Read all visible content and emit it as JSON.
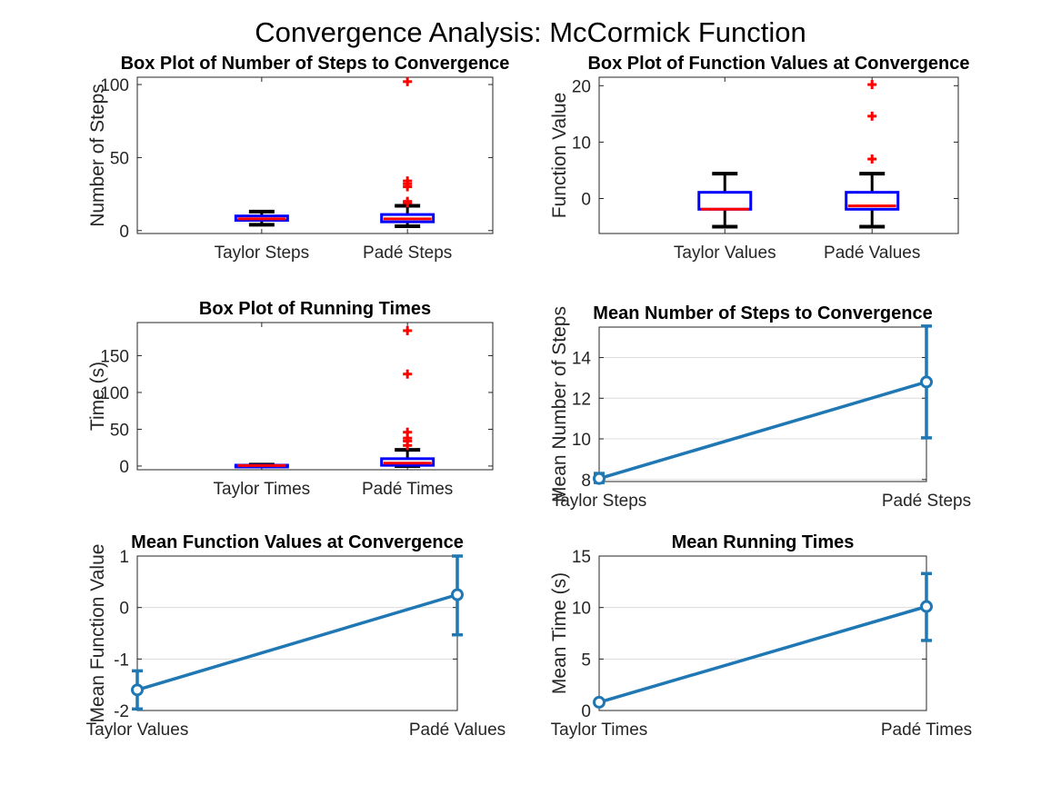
{
  "title": "Convergence Analysis: McCormick Function",
  "colors": {
    "box": "#0000ff",
    "median": "#ff0000",
    "whisker": "#000000",
    "outlier": "#ff0000",
    "line": "#1f77b4",
    "axis": "#262626",
    "grid": "#dcdcdc"
  },
  "chart_data": [
    {
      "type": "box",
      "title": "Box Plot of Number of Steps to Convergence",
      "xlabel": "",
      "ylabel": "Number of Steps",
      "categories": [
        "Taylor Steps",
        "Padé Steps"
      ],
      "ylim": [
        -2,
        105
      ],
      "yticks": [
        0,
        50,
        100
      ],
      "boxes": [
        {
          "whisker_low": 4,
          "q1": 7,
          "median": 8,
          "q3": 10,
          "whisker_high": 13,
          "outliers": []
        },
        {
          "whisker_low": 3,
          "q1": 6,
          "median": 8,
          "q3": 11,
          "whisker_high": 17,
          "outliers": [
            19,
            20,
            30,
            32,
            34,
            102
          ]
        }
      ]
    },
    {
      "type": "box",
      "title": "Box Plot of Function Values at Convergence",
      "xlabel": "",
      "ylabel": "Function Value",
      "categories": [
        "Taylor Values",
        "Padé Values"
      ],
      "ylim": [
        -6.2,
        21.5
      ],
      "yticks": [
        0,
        10,
        20
      ],
      "boxes": [
        {
          "whisker_low": -5,
          "q1": -1.9,
          "median": -1.9,
          "q3": 1.1,
          "whisker_high": 4.4,
          "outliers": []
        },
        {
          "whisker_low": -5,
          "q1": -1.9,
          "median": -1.3,
          "q3": 1.1,
          "whisker_high": 4.4,
          "outliers": [
            7,
            14.6,
            20.2
          ]
        }
      ]
    },
    {
      "type": "box",
      "title": "Box Plot of Running Times",
      "xlabel": "",
      "ylabel": "Time (s)",
      "categories": [
        "Taylor Times",
        "Padé Times"
      ],
      "ylim": [
        -5,
        195
      ],
      "yticks": [
        0,
        50,
        100,
        150
      ],
      "boxes": [
        {
          "whisker_low": 0,
          "q1": 0.3,
          "median": 0.7,
          "q3": 1.2,
          "whisker_high": 2,
          "outliers": []
        },
        {
          "whisker_low": 0,
          "q1": 1,
          "median": 4,
          "q3": 10,
          "whisker_high": 22,
          "outliers": [
            28,
            34,
            38,
            46,
            125,
            184
          ]
        }
      ]
    },
    {
      "type": "line",
      "title": "Mean Number of Steps to Convergence",
      "xlabel": "",
      "ylabel": "Mean Number of Steps",
      "categories": [
        "Taylor Steps",
        "Padé Steps"
      ],
      "ylim": [
        7.9,
        15.5
      ],
      "yticks": [
        8,
        10,
        12,
        14
      ],
      "values": [
        8.05,
        12.8
      ],
      "error_low": [
        7.85,
        10.05
      ],
      "error_high": [
        8.3,
        15.55
      ]
    },
    {
      "type": "line",
      "title": "Mean Function Values at Convergence",
      "xlabel": "",
      "ylabel": "Mean Function Value",
      "categories": [
        "Taylor Values",
        "Padé Values"
      ],
      "ylim": [
        -2,
        1
      ],
      "yticks": [
        -2,
        -1,
        0,
        1
      ],
      "values": [
        -1.6,
        0.25
      ],
      "error_low": [
        -1.97,
        -0.53
      ],
      "error_high": [
        -1.23,
        1.0
      ]
    },
    {
      "type": "line",
      "title": "Mean Running Times",
      "xlabel": "",
      "ylabel": "Mean Time (s)",
      "categories": [
        "Taylor Times",
        "Padé Times"
      ],
      "ylim": [
        0,
        15
      ],
      "yticks": [
        0,
        5,
        10,
        15
      ],
      "values": [
        0.8,
        10.1
      ],
      "error_low": [
        0.6,
        6.8
      ],
      "error_high": [
        1.0,
        13.3
      ]
    }
  ]
}
